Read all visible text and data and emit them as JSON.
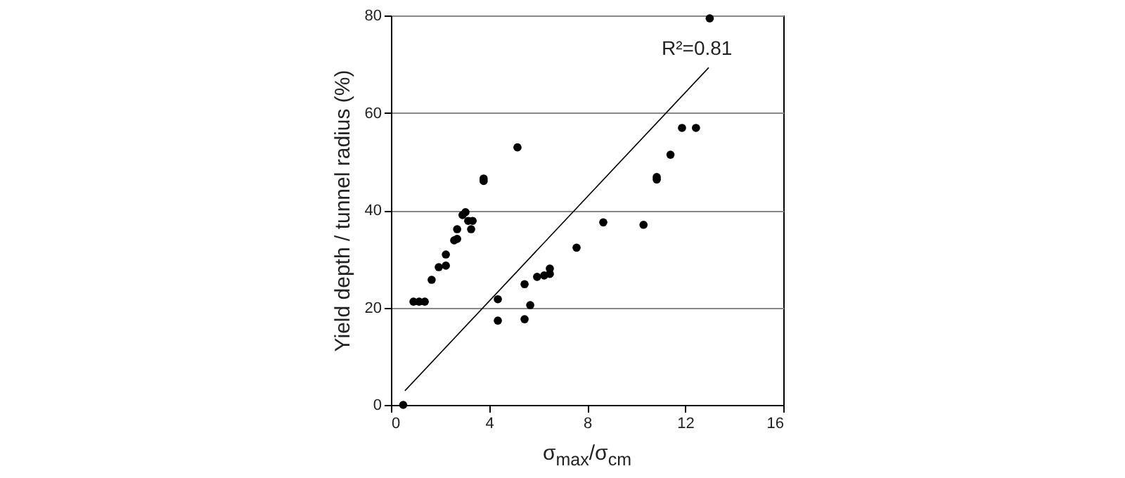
{
  "chart_data": {
    "type": "scatter",
    "xlabel": "σ$_{max}$/σ$_{cm}$",
    "ylabel": "Yield depth / tunnel radius (%)",
    "xlim": [
      0,
      16
    ],
    "ylim": [
      0,
      80
    ],
    "xticks": [
      0,
      4,
      8,
      12,
      16
    ],
    "yticks": [
      0,
      20,
      40,
      60,
      80
    ],
    "grid": "y",
    "marker": "circle",
    "annotations": [
      "R²=0.81"
    ],
    "series": [
      {
        "color": "#000000",
        "x": [
          0.5,
          0.92,
          1.15,
          1.38,
          1.66,
          1.95,
          2.24,
          2.24,
          2.58,
          2.7,
          2.7,
          2.92,
          3.04,
          3.15,
          3.33,
          3.27,
          3.78,
          3.78,
          5.16,
          4.36,
          4.36,
          5.45,
          5.45,
          5.68,
          5.96,
          6.25,
          6.48,
          6.48,
          7.57,
          8.66,
          10.3,
          10.84,
          10.84,
          11.4,
          11.87,
          12.44,
          13.0
        ],
        "values": [
          0,
          21.2,
          21.2,
          21.2,
          25.7,
          28.3,
          28.6,
          30.9,
          33.8,
          34.1,
          36.1,
          39.0,
          39.6,
          37.8,
          37.8,
          36.1,
          46.5,
          46.0,
          52.9,
          21.7,
          17.3,
          24.8,
          17.6,
          20.5,
          26.3,
          26.6,
          26.9,
          28.0,
          32.3,
          37.5,
          37.0,
          46.8,
          46.3,
          51.4,
          56.9,
          56.9,
          79.4
        ]
      },
      {
        "type": "line",
        "marker": "none",
        "color": "#000000",
        "x": [
          0.57,
          12.96
        ],
        "values": [
          2.9,
          69.3
        ]
      }
    ]
  }
}
